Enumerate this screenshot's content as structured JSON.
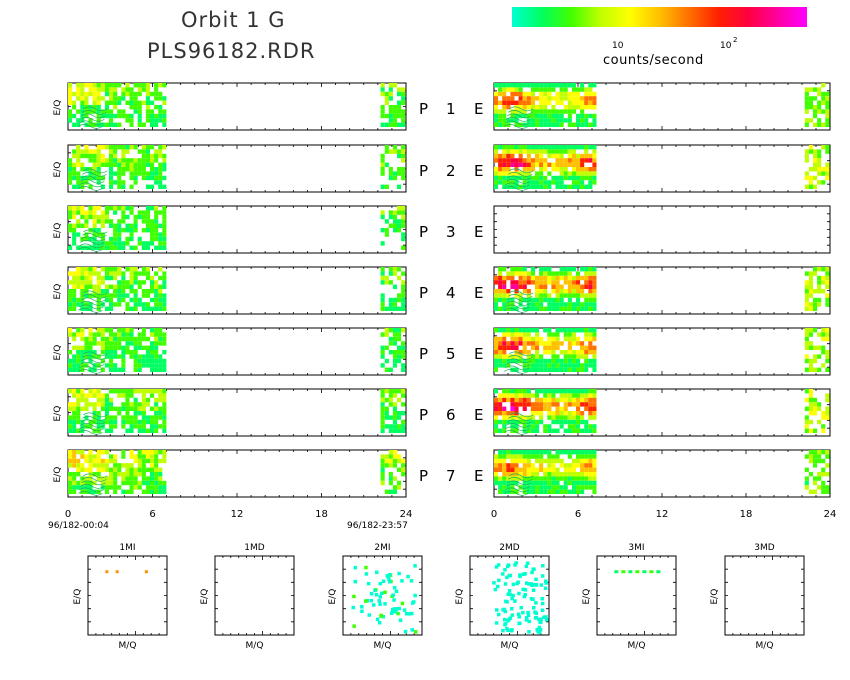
{
  "title_line1": "Orbit 1 G",
  "title_line2": "PLS96182.RDR",
  "colorbar": {
    "tick_10": "10",
    "tick_100_base": "10",
    "tick_100_exp": "2",
    "unit": "counts/second",
    "colors": [
      "#00ffd0",
      "#00ff60",
      "#40ff00",
      "#c0ff00",
      "#ffff00",
      "#ffc000",
      "#ff7000",
      "#ff2000",
      "#ff0040",
      "#ff00a0",
      "#ff00ff"
    ]
  },
  "chart_data": {
    "type": "heatmap",
    "rows": [
      {
        "prefix": "P",
        "number": "1",
        "suffix": "E"
      },
      {
        "prefix": "P",
        "number": "2",
        "suffix": "E"
      },
      {
        "prefix": "P",
        "number": "3",
        "suffix": "E"
      },
      {
        "prefix": "P",
        "number": "4",
        "suffix": "E"
      },
      {
        "prefix": "P",
        "number": "5",
        "suffix": "E"
      },
      {
        "prefix": "P",
        "number": "6",
        "suffix": "E"
      },
      {
        "prefix": "P",
        "number": "7",
        "suffix": "E"
      }
    ],
    "ylabel": "E/Q",
    "x_ticks": [
      "0",
      "6",
      "12",
      "18",
      "24"
    ],
    "xlim": [
      0,
      24
    ],
    "left_start_label": "96/182-00:04",
    "left_end_label": "96/182-23:57",
    "p_panels_data_ranges_hours": [
      [
        0,
        7
      ],
      [
        22.2,
        24
      ]
    ],
    "e_panels_data_ranges_hours": [
      [
        0,
        7.4
      ],
      [
        22.2,
        24
      ]
    ],
    "e_row_peak_intensity": [
      0.75,
      0.9,
      0.0,
      0.95,
      0.85,
      0.95,
      0.7
    ],
    "p_row_peak_intensity": [
      0.35,
      0.35,
      0.3,
      0.35,
      0.3,
      0.35,
      0.45
    ],
    "bottom_panels": [
      {
        "title": "1MI",
        "xlabel": "M/Q",
        "ylabel": "E/Q"
      },
      {
        "title": "1MD",
        "xlabel": "M/Q",
        "ylabel": "E/Q"
      },
      {
        "title": "2MI",
        "xlabel": "M/Q",
        "ylabel": "E/Q"
      },
      {
        "title": "2MD",
        "xlabel": "M/Q",
        "ylabel": "E/Q"
      },
      {
        "title": "3MI",
        "xlabel": "M/Q",
        "ylabel": "E/Q"
      },
      {
        "title": "3MD",
        "xlabel": "M/Q",
        "ylabel": "E/Q"
      }
    ]
  }
}
